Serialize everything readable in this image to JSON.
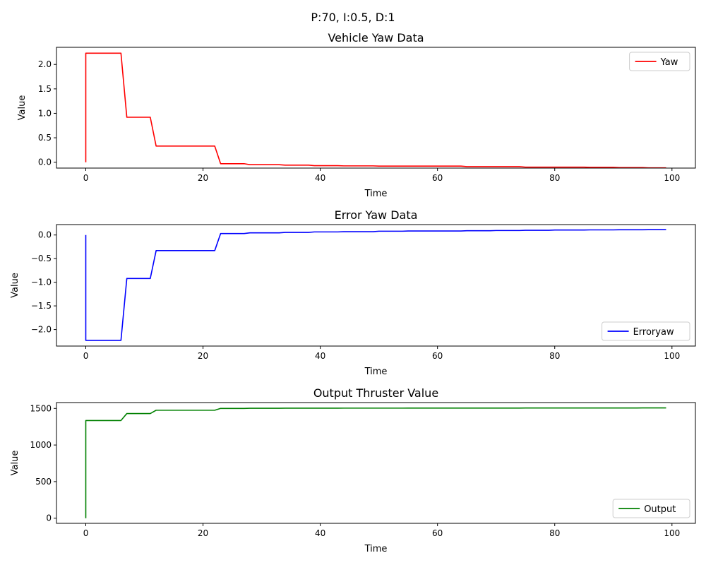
{
  "suptitle": "P:70, I:0.5, D:1",
  "chart_data": [
    {
      "type": "line",
      "title": "Vehicle Yaw Data",
      "xlabel": "Time",
      "ylabel": "Value",
      "xlim": [
        -5,
        104
      ],
      "ylim": [
        -0.12,
        2.35
      ],
      "xticks": [
        0,
        20,
        40,
        60,
        80,
        100
      ],
      "yticks": [
        0.0,
        0.5,
        1.0,
        1.5,
        2.0
      ],
      "ytick_labels": [
        "0.0",
        "0.5",
        "1.0",
        "1.5",
        "2.0"
      ],
      "grid": false,
      "legend_position": "top-right",
      "series": [
        {
          "name": "Yaw",
          "color": "#ff0000",
          "points": [
            [
              0,
              0
            ],
            [
              0,
              2.23
            ],
            [
              6,
              2.23
            ],
            [
              7,
              0.92
            ],
            [
              11,
              0.92
            ],
            [
              12,
              0.33
            ],
            [
              22,
              0.33
            ],
            [
              23,
              -0.03
            ],
            [
              27,
              -0.03
            ],
            [
              28,
              -0.05
            ],
            [
              33,
              -0.05
            ],
            [
              34,
              -0.06
            ],
            [
              38,
              -0.06
            ],
            [
              39,
              -0.07
            ],
            [
              43,
              -0.07
            ],
            [
              44,
              -0.075
            ],
            [
              49,
              -0.075
            ],
            [
              50,
              -0.08
            ],
            [
              64,
              -0.08
            ],
            [
              65,
              -0.09
            ],
            [
              74,
              -0.09
            ],
            [
              75,
              -0.1
            ],
            [
              85,
              -0.1
            ],
            [
              86,
              -0.105
            ],
            [
              90,
              -0.105
            ],
            [
              91,
              -0.11
            ],
            [
              95,
              -0.11
            ],
            [
              96,
              -0.115
            ],
            [
              99,
              -0.115
            ]
          ]
        }
      ]
    },
    {
      "type": "line",
      "title": "Error Yaw Data",
      "xlabel": "Time",
      "ylabel": "Value",
      "xlim": [
        -5,
        104
      ],
      "ylim": [
        -2.35,
        0.22
      ],
      "xticks": [
        0,
        20,
        40,
        60,
        80,
        100
      ],
      "yticks": [
        -2.0,
        -1.5,
        -1.0,
        -0.5,
        0.0
      ],
      "ytick_labels": [
        "−2.0",
        "−1.5",
        "−1.0",
        "−0.5",
        "0.0"
      ],
      "grid": false,
      "legend_position": "bottom-right",
      "series": [
        {
          "name": "Erroryaw",
          "color": "#0000ff",
          "points": [
            [
              0,
              0
            ],
            [
              0,
              -2.23
            ],
            [
              6,
              -2.23
            ],
            [
              7,
              -0.92
            ],
            [
              11,
              -0.92
            ],
            [
              12,
              -0.33
            ],
            [
              22,
              -0.33
            ],
            [
              23,
              0.03
            ],
            [
              27,
              0.03
            ],
            [
              28,
              0.045
            ],
            [
              33,
              0.045
            ],
            [
              34,
              0.055
            ],
            [
              38,
              0.055
            ],
            [
              39,
              0.065
            ],
            [
              43,
              0.065
            ],
            [
              44,
              0.07
            ],
            [
              49,
              0.07
            ],
            [
              50,
              0.08
            ],
            [
              54,
              0.08
            ],
            [
              55,
              0.085
            ],
            [
              64,
              0.085
            ],
            [
              65,
              0.09
            ],
            [
              69,
              0.09
            ],
            [
              70,
              0.095
            ],
            [
              74,
              0.095
            ],
            [
              75,
              0.1
            ],
            [
              79,
              0.1
            ],
            [
              80,
              0.105
            ],
            [
              85,
              0.105
            ],
            [
              86,
              0.108
            ],
            [
              90,
              0.108
            ],
            [
              91,
              0.11
            ],
            [
              95,
              0.11
            ],
            [
              96,
              0.113
            ],
            [
              99,
              0.113
            ]
          ]
        }
      ]
    },
    {
      "type": "line",
      "title": "Output Thruster Value",
      "xlabel": "Time",
      "ylabel": "Value",
      "xlim": [
        -5,
        104
      ],
      "ylim": [
        -70,
        1580
      ],
      "xticks": [
        0,
        20,
        40,
        60,
        80,
        100
      ],
      "yticks": [
        0,
        500,
        1000,
        1500
      ],
      "ytick_labels": [
        "0",
        "500",
        "1000",
        "1500"
      ],
      "grid": false,
      "legend_position": "bottom-right",
      "series": [
        {
          "name": "Output",
          "color": "#008000",
          "points": [
            [
              0,
              0
            ],
            [
              0,
              1335
            ],
            [
              6,
              1335
            ],
            [
              7,
              1430
            ],
            [
              11,
              1430
            ],
            [
              12,
              1475
            ],
            [
              22,
              1475
            ],
            [
              23,
              1500
            ],
            [
              27,
              1500
            ],
            [
              28,
              1502
            ],
            [
              33,
              1502
            ],
            [
              34,
              1503
            ],
            [
              43,
              1503
            ],
            [
              44,
              1504
            ],
            [
              54,
              1504
            ],
            [
              55,
              1505
            ],
            [
              74,
              1505
            ],
            [
              75,
              1506
            ],
            [
              94,
              1506
            ],
            [
              95,
              1507
            ],
            [
              99,
              1507
            ]
          ]
        }
      ]
    }
  ]
}
